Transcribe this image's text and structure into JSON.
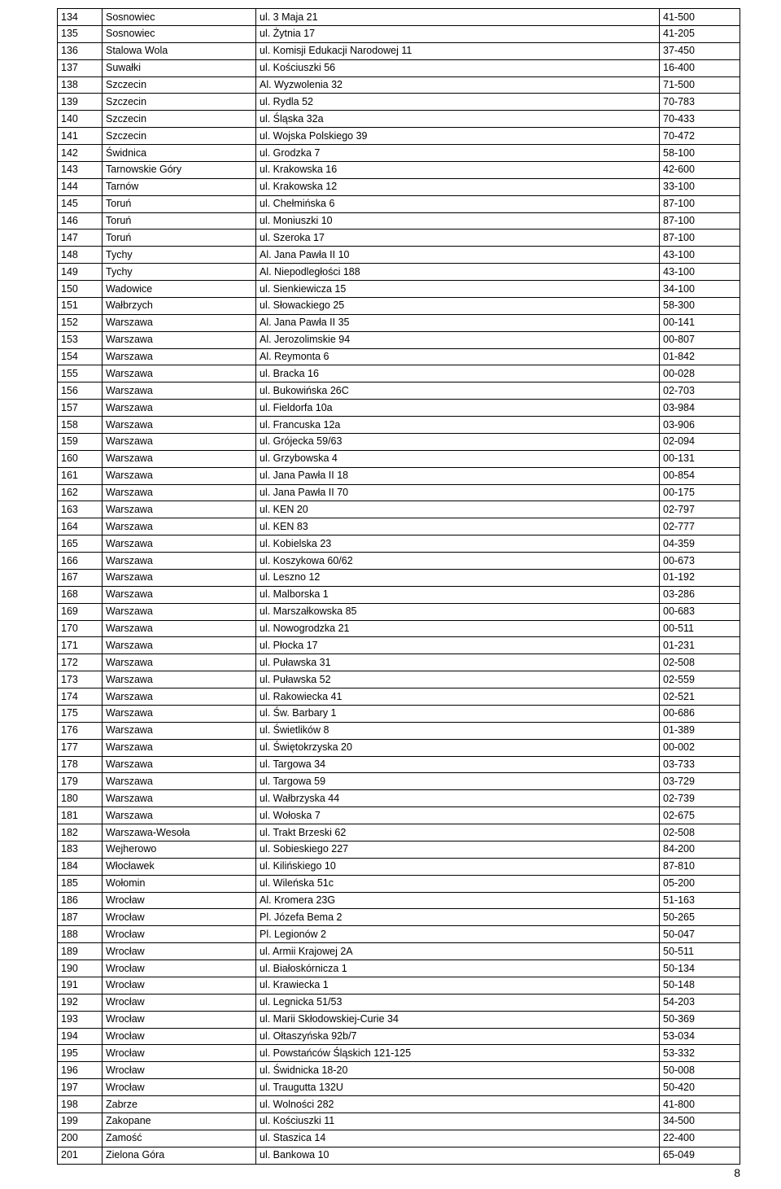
{
  "page_number": "8",
  "table": {
    "rows": [
      [
        "134",
        "Sosnowiec",
        "ul. 3 Maja 21",
        "41-500"
      ],
      [
        "135",
        "Sosnowiec",
        "ul. Żytnia 17",
        "41-205"
      ],
      [
        "136",
        "Stalowa Wola",
        "ul. Komisji Edukacji Narodowej 11",
        "37-450"
      ],
      [
        "137",
        "Suwałki",
        "ul. Kościuszki 56",
        "16-400"
      ],
      [
        "138",
        "Szczecin",
        "Al. Wyzwolenia 32",
        "71-500"
      ],
      [
        "139",
        "Szczecin",
        "ul. Rydla 52",
        "70-783"
      ],
      [
        "140",
        "Szczecin",
        "ul. Śląska 32a",
        "70-433"
      ],
      [
        "141",
        "Szczecin",
        "ul. Wojska Polskiego 39",
        "70-472"
      ],
      [
        "142",
        "Świdnica",
        "ul. Grodzka 7",
        "58-100"
      ],
      [
        "143",
        "Tarnowskie Góry",
        "ul. Krakowska 16",
        "42-600"
      ],
      [
        "144",
        "Tarnów",
        "ul. Krakowska 12",
        "33-100"
      ],
      [
        "145",
        "Toruń",
        "ul. Chełmińska 6",
        "87-100"
      ],
      [
        "146",
        "Toruń",
        "ul. Moniuszki 10",
        "87-100"
      ],
      [
        "147",
        "Toruń",
        "ul. Szeroka 17",
        "87-100"
      ],
      [
        "148",
        "Tychy",
        "Al. Jana Pawła II 10",
        "43-100"
      ],
      [
        "149",
        "Tychy",
        "Al. Niepodległości 188",
        "43-100"
      ],
      [
        "150",
        "Wadowice",
        "ul. Sienkiewicza 15",
        "34-100"
      ],
      [
        "151",
        "Wałbrzych",
        "ul. Słowackiego 25",
        "58-300"
      ],
      [
        "152",
        "Warszawa",
        "Al. Jana Pawła II 35",
        "00-141"
      ],
      [
        "153",
        "Warszawa",
        "Al. Jerozolimskie 94",
        "00-807"
      ],
      [
        "154",
        "Warszawa",
        "Al. Reymonta 6",
        "01-842"
      ],
      [
        "155",
        "Warszawa",
        "ul. Bracka 16",
        "00-028"
      ],
      [
        "156",
        "Warszawa",
        "ul. Bukowińska 26C",
        "02-703"
      ],
      [
        "157",
        "Warszawa",
        "ul. Fieldorfa 10a",
        "03-984"
      ],
      [
        "158",
        "Warszawa",
        "ul. Francuska 12a",
        "03-906"
      ],
      [
        "159",
        "Warszawa",
        "ul. Grójecka 59/63",
        "02-094"
      ],
      [
        "160",
        "Warszawa",
        "ul. Grzybowska 4",
        "00-131"
      ],
      [
        "161",
        "Warszawa",
        "ul. Jana Pawła II 18",
        "00-854"
      ],
      [
        "162",
        "Warszawa",
        "ul. Jana Pawła II 70",
        "00-175"
      ],
      [
        "163",
        "Warszawa",
        "ul. KEN 20",
        "02-797"
      ],
      [
        "164",
        "Warszawa",
        "ul. KEN 83",
        "02-777"
      ],
      [
        "165",
        "Warszawa",
        "ul. Kobielska 23",
        "04-359"
      ],
      [
        "166",
        "Warszawa",
        "ul. Koszykowa 60/62",
        "00-673"
      ],
      [
        "167",
        "Warszawa",
        "ul. Leszno 12",
        "01-192"
      ],
      [
        "168",
        "Warszawa",
        "ul. Malborska 1",
        "03-286"
      ],
      [
        "169",
        "Warszawa",
        "ul. Marszałkowska 85",
        "00-683"
      ],
      [
        "170",
        "Warszawa",
        "ul. Nowogrodzka 21",
        "00-511"
      ],
      [
        "171",
        "Warszawa",
        "ul. Płocka 17",
        "01-231"
      ],
      [
        "172",
        "Warszawa",
        "ul. Puławska 31",
        "02-508"
      ],
      [
        "173",
        "Warszawa",
        "ul. Puławska 52",
        "02-559"
      ],
      [
        "174",
        "Warszawa",
        "ul. Rakowiecka 41",
        "02-521"
      ],
      [
        "175",
        "Warszawa",
        "ul. Św. Barbary 1",
        "00-686"
      ],
      [
        "176",
        "Warszawa",
        "ul. Świetlików 8",
        "01-389"
      ],
      [
        "177",
        "Warszawa",
        "ul. Świętokrzyska 20",
        "00-002"
      ],
      [
        "178",
        "Warszawa",
        "ul. Targowa 34",
        "03-733"
      ],
      [
        "179",
        "Warszawa",
        "ul. Targowa 59",
        "03-729"
      ],
      [
        "180",
        "Warszawa",
        "ul. Wałbrzyska 44",
        "02-739"
      ],
      [
        "181",
        "Warszawa",
        "ul. Wołoska 7",
        "02-675"
      ],
      [
        "182",
        "Warszawa-Wesoła",
        "ul. Trakt Brzeski 62",
        "02-508"
      ],
      [
        "183",
        "Wejherowo",
        "ul. Sobieskiego 227",
        "84-200"
      ],
      [
        "184",
        "Włocławek",
        "ul. Kilińskiego 10",
        "87-810"
      ],
      [
        "185",
        "Wołomin",
        "ul. Wileńska 51c",
        "05-200"
      ],
      [
        "186",
        "Wrocław",
        "Al. Kromera 23G",
        "51-163"
      ],
      [
        "187",
        "Wrocław",
        "Pl. Józefa Bema 2",
        "50-265"
      ],
      [
        "188",
        "Wrocław",
        "Pl. Legionów 2",
        "50-047"
      ],
      [
        "189",
        "Wrocław",
        "ul. Armii Krajowej 2A",
        "50-511"
      ],
      [
        "190",
        "Wrocław",
        "ul. Białoskórnicza 1",
        "50-134"
      ],
      [
        "191",
        "Wrocław",
        "ul. Krawiecka 1",
        "50-148"
      ],
      [
        "192",
        "Wrocław",
        "ul. Legnicka 51/53",
        "54-203"
      ],
      [
        "193",
        "Wrocław",
        "ul. Marii Skłodowskiej-Curie 34",
        "50-369"
      ],
      [
        "194",
        "Wrocław",
        "ul. Ołtaszyńska 92b/7",
        "53-034"
      ],
      [
        "195",
        "Wrocław",
        "ul. Powstańców Śląskich 121-125",
        "53-332"
      ],
      [
        "196",
        "Wrocław",
        "ul. Świdnicka 18-20",
        "50-008"
      ],
      [
        "197",
        "Wrocław",
        "ul. Traugutta 132U",
        "50-420"
      ],
      [
        "198",
        "Zabrze",
        "ul. Wolności 282",
        "41-800"
      ],
      [
        "199",
        "Zakopane",
        "ul. Kościuszki 11",
        "34-500"
      ],
      [
        "200",
        "Zamość",
        "ul. Staszica 14",
        "22-400"
      ],
      [
        "201",
        "Zielona Góra",
        "ul. Bankowa 10",
        "65-049"
      ]
    ]
  }
}
